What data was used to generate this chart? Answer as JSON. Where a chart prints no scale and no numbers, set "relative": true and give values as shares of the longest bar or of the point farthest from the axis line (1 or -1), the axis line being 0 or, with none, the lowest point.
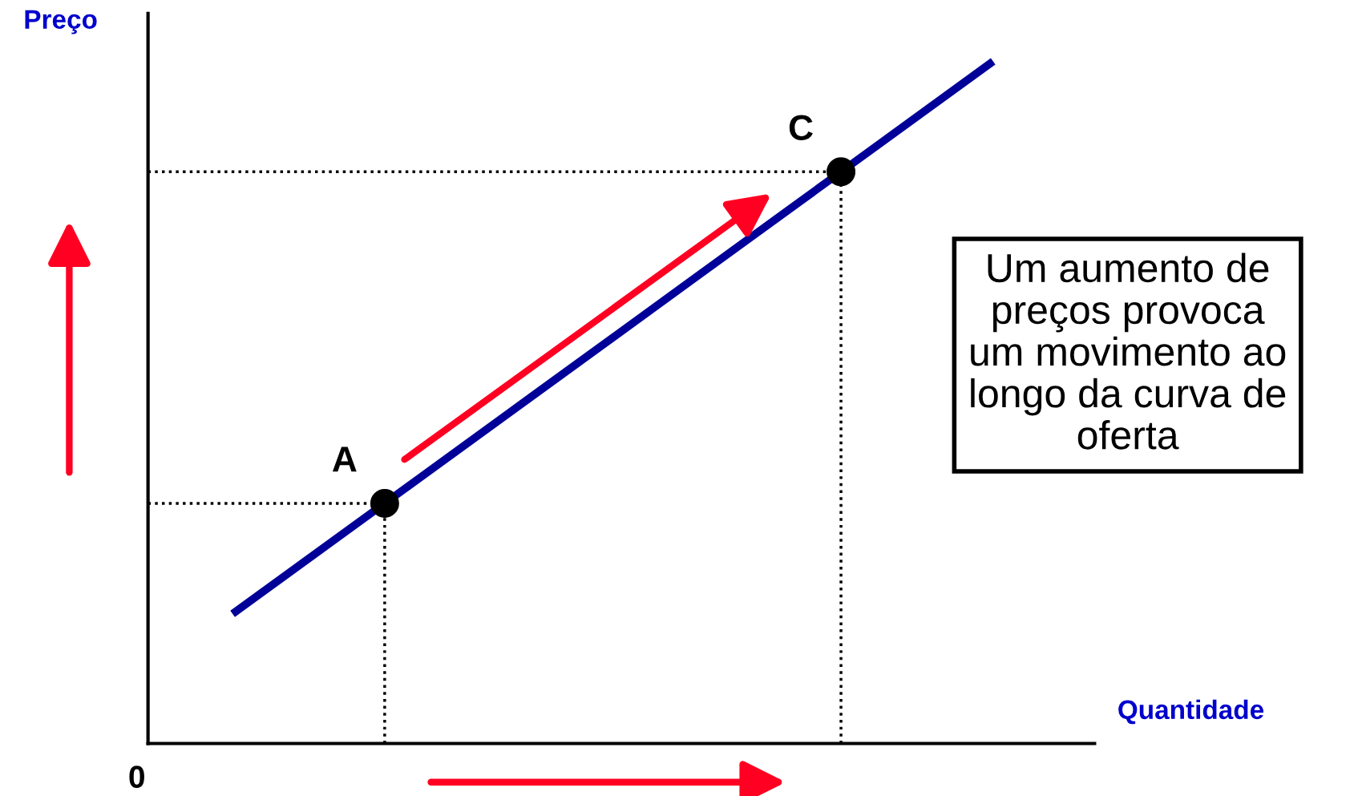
{
  "chart_data": {
    "type": "line",
    "relative": true,
    "xlabel": "Quantidade",
    "ylabel": "Preço",
    "categories": [
      null,
      null,
      null,
      null,
      null,
      null
    ],
    "series": [
      {
        "color": "#000099",
        "values": [
          0.19,
          0.352,
          0.514,
          0.676,
          0.838,
          1.0
        ]
      }
    ],
    "annotations": [
      "0",
      "A",
      "C",
      "Um aumento de\npreços provoca\num movimento ao\nlongo da curva de\noferta"
    ],
    "legend": false
  }
}
